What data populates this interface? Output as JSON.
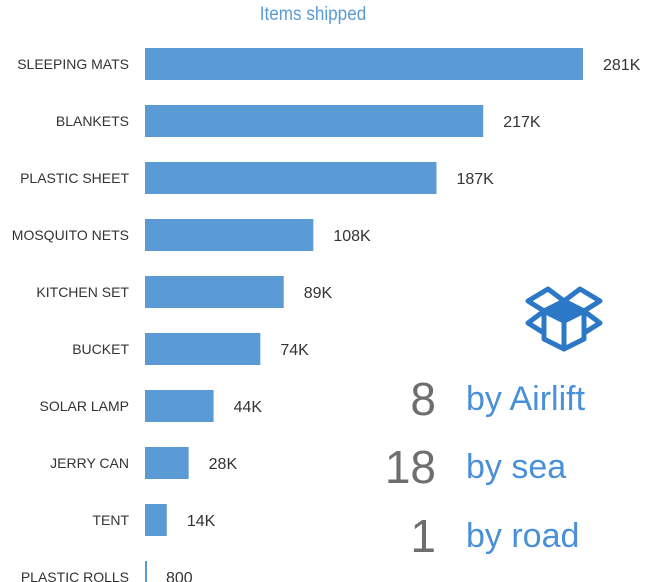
{
  "chart_data": {
    "type": "bar",
    "orientation": "horizontal",
    "title": "Items shipped",
    "categories": [
      "SLEEPING MATS",
      "BLANKETS",
      "PLASTIC SHEET",
      "MOSQUITO NETS",
      "KITCHEN SET",
      "BUCKET",
      "SOLAR LAMP",
      "JERRY CAN",
      "TENT",
      "PLASTIC ROLLS"
    ],
    "values": [
      281000,
      217000,
      187000,
      108000,
      89000,
      74000,
      44000,
      28000,
      14000,
      800
    ],
    "data_labels": [
      "281K",
      "217K",
      "187K",
      "108K",
      "89K",
      "74K",
      "44K",
      "28K",
      "14K",
      "800"
    ],
    "xlim": [
      0,
      281000
    ],
    "grid": false,
    "bar_color": "#5b9bd5"
  },
  "shipments": [
    {
      "count": "8",
      "mode": "by Airlift"
    },
    {
      "count": "18",
      "mode": "by sea"
    },
    {
      "count": "1",
      "mode": "by road"
    }
  ],
  "icon": "open-box-icon",
  "colors": {
    "accent": "#4a90d9",
    "number": "#6e6e6e",
    "bar": "#5b9bd5"
  }
}
